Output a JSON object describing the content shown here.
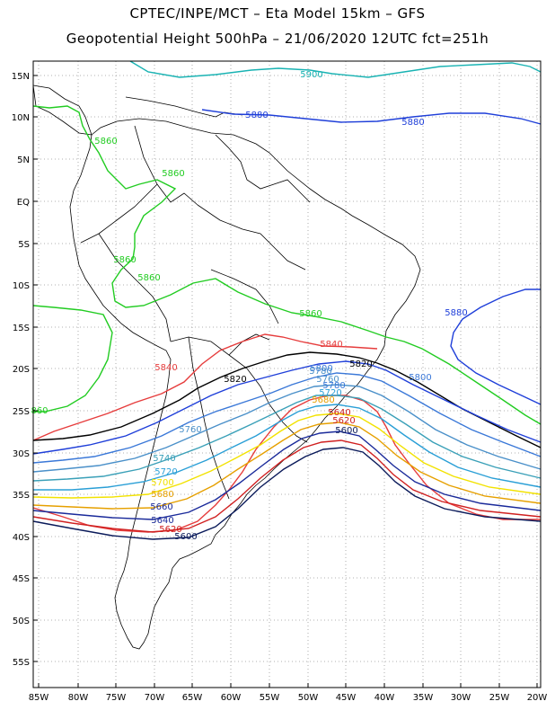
{
  "header": {
    "line1": "CPTEC/INPE/MCT –  Eta Model 15km – GFS",
    "line2": "Geopotential Height 500hPa – 21/06/2020 12UTC fct=251h"
  },
  "map": {
    "lat_labels": [
      "15N",
      "10N",
      "5N",
      "EQ",
      "5S",
      "10S",
      "15S",
      "20S",
      "25S",
      "30S",
      "35S",
      "40S",
      "45S",
      "50S",
      "55S"
    ],
    "lon_labels": [
      "85W",
      "80W",
      "75W",
      "70W",
      "65W",
      "60W",
      "55W",
      "50W",
      "45W",
      "40W",
      "35W",
      "30W",
      "25W",
      "20W"
    ],
    "grid": "dotted",
    "colors": {
      "5900": "#19b3b3",
      "5880": "#1f3fd9",
      "5860": "#22cc22",
      "5840": "#e63c3c",
      "5820": "#000000",
      "5800": "#1f3fd9",
      "5780": "#3a78d8",
      "5760": "#4a90c9",
      "5740": "#3aa0b8",
      "5720": "#2a9fd6",
      "5700": "#f2e200",
      "5680": "#e6a000",
      "5660": "#1a2a9a",
      "5640": "#d02020",
      "5620": "#d02020",
      "5600": "#0a1a5a",
      "coast": "#000000"
    },
    "contour_labels": [
      {
        "text": "5900",
        "key": "5900"
      },
      {
        "text": "5880",
        "key": "5880"
      },
      {
        "text": "5880",
        "key": "5880"
      },
      {
        "text": "5880",
        "key": "5880"
      },
      {
        "text": "5860",
        "key": "5860"
      },
      {
        "text": "5860",
        "key": "5860"
      },
      {
        "text": "5860",
        "key": "5860"
      },
      {
        "text": "5860",
        "key": "5860"
      },
      {
        "text": "5860",
        "key": "5860"
      },
      {
        "text": "860",
        "key": "5860"
      },
      {
        "text": "5840",
        "key": "5840"
      },
      {
        "text": "5840",
        "key": "5840"
      },
      {
        "text": "5820",
        "key": "5820"
      },
      {
        "text": "5820",
        "key": "5820"
      },
      {
        "text": "5800",
        "key": "5780"
      },
      {
        "text": "5800",
        "key": "5780"
      },
      {
        "text": "5780",
        "key": "5760"
      },
      {
        "text": "5760",
        "key": "5760"
      },
      {
        "text": "5740",
        "key": "5740"
      },
      {
        "text": "5720",
        "key": "5720"
      },
      {
        "text": "5700",
        "key": "5700"
      },
      {
        "text": "5680",
        "key": "5680"
      },
      {
        "text": "5660",
        "key": "5660"
      },
      {
        "text": "5640",
        "key": "5660"
      },
      {
        "text": "5620",
        "key": "5620"
      },
      {
        "text": "5600",
        "key": "5600"
      },
      {
        "text": "5760",
        "key": "5760"
      },
      {
        "text": "5780",
        "key": "5780"
      },
      {
        "text": "5720",
        "key": "5720"
      },
      {
        "text": "5680",
        "key": "5680"
      },
      {
        "text": "5640",
        "key": "5640"
      },
      {
        "text": "5620",
        "key": "5620"
      },
      {
        "text": "5600",
        "key": "5600"
      }
    ]
  }
}
